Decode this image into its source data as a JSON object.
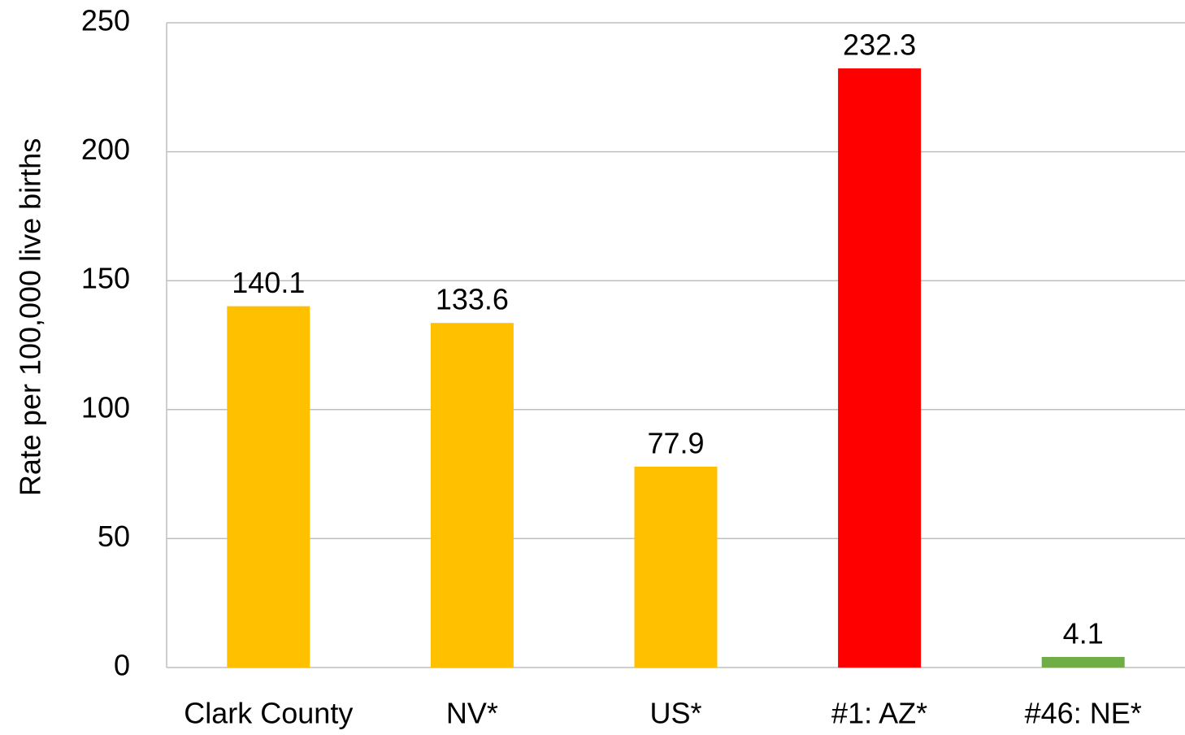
{
  "chart_data": {
    "type": "bar",
    "y_label": "Rate per 100,000 live births",
    "categories": [
      "Clark County",
      "NV*",
      "US*",
      "#1: AZ*",
      "#46: NE*"
    ],
    "values": [
      140.1,
      133.6,
      77.9,
      232.3,
      4.1
    ],
    "colors": [
      "#ffc000",
      "#ffc000",
      "#ffc000",
      "#ff0000",
      "#70ad47"
    ],
    "ylim": [
      0,
      250
    ],
    "yticks": [
      0,
      50,
      100,
      150,
      200,
      250
    ],
    "grid": true
  }
}
